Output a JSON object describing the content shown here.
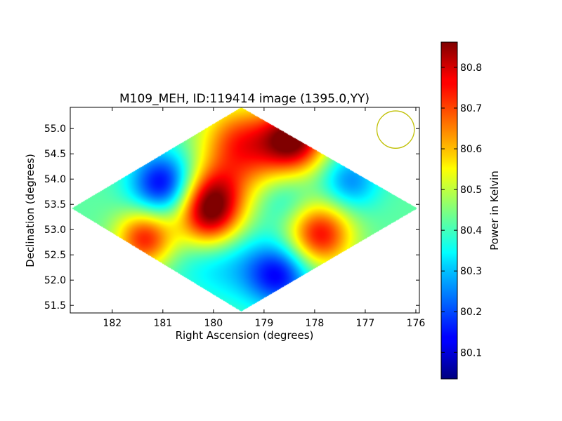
{
  "chart_data": {
    "type": "heatmap",
    "title": "M109_MEH, ID:119414 image (1395.0,YY)",
    "xlabel": "Right Ascension (degrees)",
    "ylabel": "Declination (degrees)",
    "x_inverted": true,
    "xlim": [
      182.83,
      175.93
    ],
    "ylim": [
      51.35,
      55.42
    ],
    "x_ticks": [
      182,
      181,
      180,
      179,
      178,
      177,
      176
    ],
    "y_ticks": [
      51.5,
      52.0,
      52.5,
      53.0,
      53.5,
      54.0,
      54.5,
      55.0
    ],
    "y_tick_labels": [
      "51.5",
      "52.0",
      "52.5",
      "53.0",
      "53.5",
      "54.0",
      "54.5",
      "55.0"
    ],
    "colorbar": {
      "label": "Power in Kelvin",
      "range": [
        80.035,
        80.862
      ],
      "ticks": [
        80.1,
        80.2,
        80.3,
        80.4,
        80.5,
        80.6,
        80.7,
        80.8
      ],
      "tick_labels": [
        "80.1",
        "80.2",
        "80.3",
        "80.4",
        "80.5",
        "80.6",
        "80.7",
        "80.8"
      ],
      "colormap": "jet"
    },
    "footprint": [
      {
        "ra": 179.45,
        "dec": 55.42
      },
      {
        "ra": 175.97,
        "dec": 53.42
      },
      {
        "ra": 179.45,
        "dec": 51.38
      },
      {
        "ra": 182.8,
        "dec": 53.42
      }
    ],
    "field_mean": 80.42,
    "features": [
      {
        "ra": 178.4,
        "dec": 54.8,
        "value": 80.83,
        "spread": 0.45
      },
      {
        "ra": 179.2,
        "dec": 54.5,
        "value": 80.6,
        "spread": 0.6
      },
      {
        "ra": 179.6,
        "dec": 54.8,
        "value": 80.58,
        "spread": 0.5
      },
      {
        "ra": 181.35,
        "dec": 52.83,
        "value": 80.74,
        "spread": 0.4
      },
      {
        "ra": 180.1,
        "dec": 53.2,
        "value": 80.74,
        "spread": 0.45
      },
      {
        "ra": 180.0,
        "dec": 53.7,
        "value": 80.68,
        "spread": 0.45
      },
      {
        "ra": 177.9,
        "dec": 52.9,
        "value": 80.76,
        "spread": 0.45
      },
      {
        "ra": 181.0,
        "dec": 53.9,
        "value": 80.12,
        "spread": 0.45
      },
      {
        "ra": 178.7,
        "dec": 52.1,
        "value": 80.15,
        "spread": 0.45
      },
      {
        "ra": 177.3,
        "dec": 53.95,
        "value": 80.25,
        "spread": 0.4
      },
      {
        "ra": 179.6,
        "dec": 52.3,
        "value": 80.33,
        "spread": 0.55
      },
      {
        "ra": 180.3,
        "dec": 52.5,
        "value": 80.36,
        "spread": 0.5
      },
      {
        "ra": 178.6,
        "dec": 53.6,
        "value": 80.33,
        "spread": 0.4
      },
      {
        "ra": 176.9,
        "dec": 53.5,
        "value": 80.42,
        "spread": 0.6
      }
    ],
    "beam": {
      "ra": 176.4,
      "dec": 54.98,
      "radius_deg": 0.37,
      "color": "#bfbf00"
    }
  }
}
